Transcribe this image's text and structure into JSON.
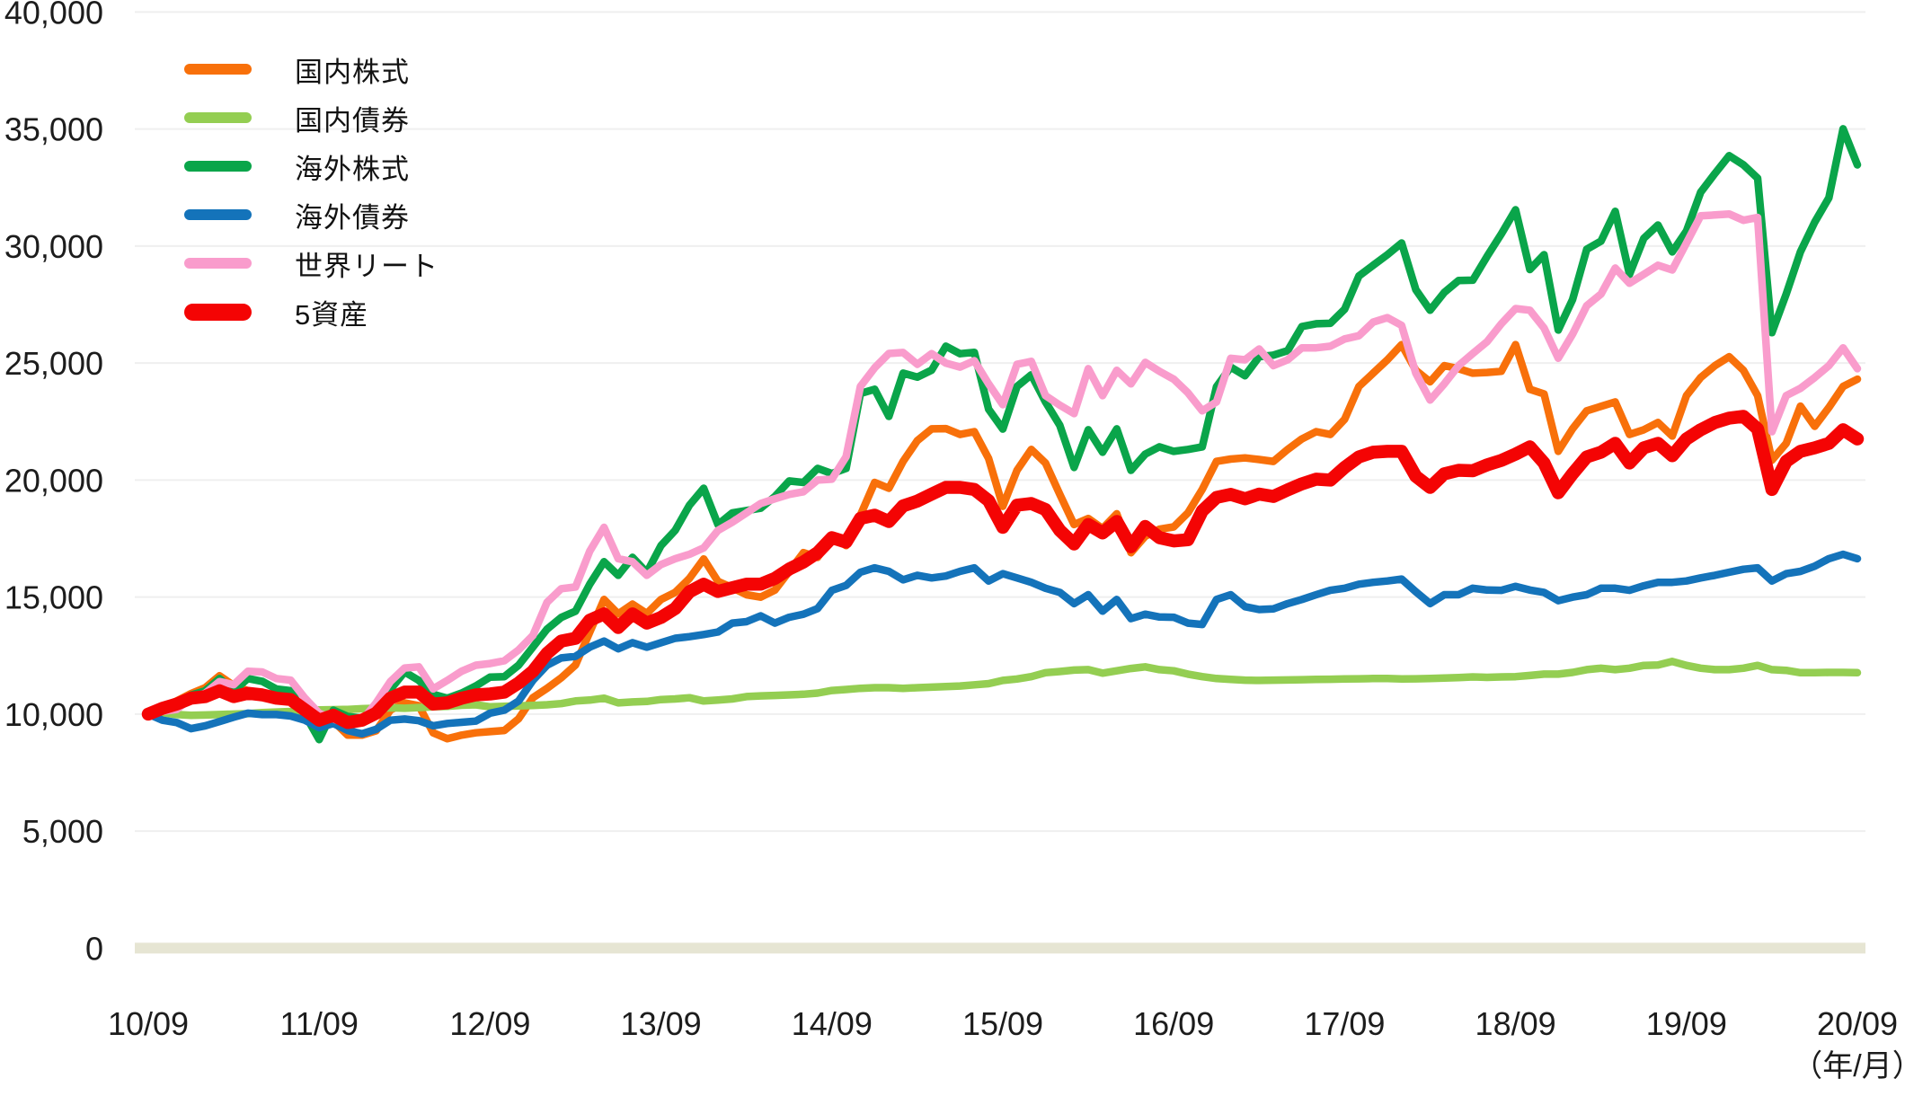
{
  "chart_data": {
    "type": "line",
    "title": "",
    "description": "Growth of 10,000 invested in five asset classes and a 5-asset blend, monthly 2010/09 - 2020/09",
    "x_axis": {
      "unit_label": "（年/月）",
      "tick_labels": [
        "10/09",
        "11/09",
        "12/09",
        "13/09",
        "14/09",
        "15/09",
        "16/09",
        "17/09",
        "18/09",
        "19/09",
        "20/09"
      ],
      "interval": "monthly",
      "months_per_tick": 12,
      "total_points": 121
    },
    "y_axis": {
      "min": 0,
      "max": 40000,
      "tick_step": 5000,
      "tick_values": [
        0,
        5000,
        10000,
        15000,
        20000,
        25000,
        30000,
        35000,
        40000
      ],
      "tick_labels": [
        "0",
        "5,000",
        "10,000",
        "15,000",
        "20,000",
        "25,000",
        "30,000",
        "35,000",
        "40,000"
      ],
      "grid": true,
      "grid_color": "#efefef",
      "zero_line_color": "#e6e5d3"
    },
    "legend": [
      {
        "label": "国内株式",
        "color": "#f8700a"
      },
      {
        "label": "国内債券",
        "color": "#94ce52"
      },
      {
        "label": "海外株式",
        "color": "#0aa54a"
      },
      {
        "label": "海外債券",
        "color": "#1473ba"
      },
      {
        "label": "世界リート",
        "color": "#f99ccc"
      },
      {
        "label": "5資産",
        "color": "#f40404"
      }
    ],
    "series": [
      {
        "name": "国内株式",
        "color": "#f8700a",
        "emphasis": false,
        "values": [
          10000,
          10300,
          10560,
          10880,
          11130,
          11640,
          11220,
          11000,
          10750,
          10860,
          10650,
          9900,
          9600,
          9700,
          9100,
          9100,
          9290,
          10170,
          10480,
          10360,
          9200,
          8950,
          9100,
          9200,
          9250,
          9300,
          9800,
          10700,
          11100,
          11550,
          12100,
          13500,
          14900,
          14280,
          14700,
          14300,
          14900,
          15200,
          15800,
          16630,
          15670,
          15400,
          15100,
          15000,
          15300,
          16100,
          16900,
          16700,
          17590,
          17200,
          18500,
          19900,
          19650,
          20800,
          21690,
          22190,
          22200,
          21950,
          22070,
          20920,
          18880,
          20420,
          21310,
          20730,
          19390,
          18100,
          18360,
          17930,
          18560,
          16900,
          17600,
          17900,
          18000,
          18600,
          19600,
          20800,
          20900,
          20950,
          20880,
          20800,
          21310,
          21760,
          22070,
          21950,
          22600,
          24000,
          24570,
          25140,
          25790,
          24690,
          24200,
          24890,
          24760,
          24570,
          24600,
          24650,
          25790,
          23880,
          23680,
          21230,
          22190,
          22960,
          23150,
          23340,
          21950,
          22150,
          22460,
          21880,
          23610,
          24380,
          24890,
          25270,
          24690,
          23610,
          20850,
          21570,
          23160,
          22300,
          23100,
          24000,
          24310
        ]
      },
      {
        "name": "国内債券",
        "color": "#94ce52",
        "emphasis": false,
        "values": [
          10000,
          10060,
          9980,
          9950,
          9960,
          9980,
          10000,
          10020,
          10060,
          10090,
          10110,
          10160,
          10180,
          10190,
          10200,
          10230,
          10250,
          10270,
          10250,
          10280,
          10310,
          10330,
          10380,
          10400,
          10310,
          10330,
          10350,
          10370,
          10400,
          10450,
          10560,
          10600,
          10680,
          10480,
          10520,
          10540,
          10620,
          10650,
          10700,
          10560,
          10600,
          10650,
          10750,
          10780,
          10800,
          10820,
          10850,
          10900,
          11010,
          11050,
          11100,
          11130,
          11130,
          11100,
          11130,
          11150,
          11180,
          11200,
          11250,
          11300,
          11440,
          11500,
          11600,
          11770,
          11820,
          11880,
          11900,
          11750,
          11850,
          11950,
          12020,
          11900,
          11850,
          11710,
          11600,
          11520,
          11480,
          11450,
          11440,
          11450,
          11460,
          11470,
          11480,
          11490,
          11500,
          11510,
          11520,
          11520,
          11500,
          11510,
          11520,
          11540,
          11560,
          11590,
          11570,
          11590,
          11600,
          11650,
          11710,
          11710,
          11780,
          11900,
          11960,
          11900,
          11960,
          12080,
          12100,
          12250,
          12080,
          11960,
          11900,
          11900,
          11960,
          12080,
          11900,
          11870,
          11770,
          11770,
          11780,
          11780,
          11770
        ]
      },
      {
        "name": "海外株式",
        "color": "#0aa54a",
        "emphasis": false,
        "values": [
          10000,
          10350,
          10430,
          10810,
          11000,
          11520,
          11000,
          11520,
          11400,
          11070,
          11000,
          9980,
          8910,
          10170,
          9900,
          9830,
          10200,
          11050,
          11800,
          11440,
          10850,
          10680,
          10900,
          11200,
          11580,
          11600,
          12090,
          12860,
          13630,
          14130,
          14400,
          15550,
          16510,
          15930,
          16700,
          16050,
          17200,
          17850,
          18930,
          19650,
          18100,
          18600,
          18700,
          18800,
          19300,
          19960,
          19900,
          20500,
          20280,
          20500,
          23700,
          23880,
          22720,
          24570,
          24400,
          24700,
          25720,
          25400,
          25460,
          23030,
          22180,
          24000,
          24500,
          23340,
          22340,
          20540,
          22150,
          21190,
          22190,
          20420,
          21110,
          21420,
          21230,
          21310,
          21420,
          23990,
          24830,
          24460,
          25270,
          25340,
          25530,
          26560,
          26680,
          26700,
          27300,
          28720,
          29180,
          29630,
          30130,
          28140,
          27260,
          28020,
          28530,
          28540,
          29560,
          30520,
          31550,
          29000,
          29630,
          26410,
          27710,
          29860,
          30210,
          31480,
          28790,
          30330,
          30900,
          29750,
          30640,
          32300,
          33100,
          33860,
          33470,
          32900,
          26300,
          27950,
          29750,
          31020,
          32060,
          35010,
          33470
        ]
      },
      {
        "name": "海外債券",
        "color": "#1473ba",
        "emphasis": false,
        "values": [
          10000,
          9740,
          9640,
          9380,
          9500,
          9680,
          9870,
          10040,
          9980,
          9980,
          9920,
          9740,
          9420,
          9600,
          9300,
          9160,
          9350,
          9740,
          9790,
          9720,
          9500,
          9600,
          9650,
          9700,
          10040,
          10170,
          10560,
          11440,
          12090,
          12400,
          12470,
          12860,
          13120,
          12790,
          13050,
          12860,
          13050,
          13240,
          13310,
          13400,
          13510,
          13890,
          13950,
          14200,
          13890,
          14140,
          14270,
          14510,
          15290,
          15500,
          16060,
          16250,
          16100,
          15740,
          15930,
          15820,
          15900,
          16100,
          16250,
          15690,
          16000,
          15820,
          15630,
          15380,
          15200,
          14720,
          15100,
          14400,
          14900,
          14080,
          14270,
          14150,
          14140,
          13890,
          13830,
          14900,
          15100,
          14590,
          14470,
          14500,
          14720,
          14900,
          15100,
          15290,
          15380,
          15550,
          15630,
          15690,
          15770,
          15230,
          14720,
          15100,
          15100,
          15380,
          15300,
          15290,
          15460,
          15300,
          15200,
          14850,
          15000,
          15100,
          15380,
          15380,
          15290,
          15480,
          15630,
          15630,
          15690,
          15820,
          15930,
          16060,
          16190,
          16250,
          15690,
          16000,
          16100,
          16320,
          16640,
          16830,
          16640
        ]
      },
      {
        "name": "世界リート",
        "color": "#f99ccc",
        "emphasis": false,
        "values": [
          10000,
          10120,
          10200,
          10680,
          10890,
          11390,
          11260,
          11830,
          11800,
          11520,
          11450,
          10680,
          10040,
          9790,
          9600,
          9720,
          10480,
          11390,
          11970,
          12020,
          11080,
          11440,
          11830,
          12090,
          12160,
          12280,
          12740,
          13360,
          14780,
          15360,
          15430,
          16960,
          17980,
          16640,
          16510,
          15930,
          16390,
          16640,
          16830,
          17100,
          17850,
          18200,
          18600,
          19000,
          19200,
          19390,
          19500,
          20000,
          20040,
          21000,
          24000,
          24800,
          25410,
          25450,
          24950,
          25400,
          25000,
          24830,
          25100,
          24110,
          23220,
          24950,
          25070,
          23610,
          23200,
          22840,
          24760,
          23610,
          24690,
          24110,
          25030,
          24650,
          24310,
          23730,
          22960,
          23340,
          25200,
          25140,
          25600,
          24890,
          25140,
          25650,
          25650,
          25720,
          26030,
          26170,
          26750,
          26940,
          26610,
          24570,
          23420,
          24110,
          24890,
          25410,
          25910,
          26680,
          27330,
          27260,
          26500,
          25210,
          26230,
          27450,
          27950,
          29060,
          28410,
          28790,
          29180,
          28980,
          30130,
          31290,
          31330,
          31370,
          31100,
          31220,
          22070,
          23610,
          23920,
          24380,
          24890,
          25650,
          24760
        ]
      },
      {
        "name": "5資産",
        "color": "#f40404",
        "emphasis": true,
        "values": [
          10000,
          10250,
          10430,
          10680,
          10750,
          11000,
          10750,
          10890,
          10820,
          10680,
          10620,
          10180,
          9740,
          9950,
          9640,
          9740,
          10040,
          10680,
          10940,
          10940,
          10430,
          10480,
          10680,
          10820,
          10860,
          10940,
          11330,
          11830,
          12600,
          13120,
          13240,
          14010,
          14280,
          13700,
          14280,
          13890,
          14130,
          14510,
          15230,
          15550,
          15240,
          15400,
          15550,
          15550,
          15800,
          16200,
          16500,
          16900,
          17540,
          17350,
          18360,
          18500,
          18230,
          18900,
          19100,
          19400,
          19690,
          19690,
          19600,
          19120,
          17980,
          18930,
          19000,
          18740,
          17850,
          17270,
          18100,
          17740,
          18230,
          17150,
          18020,
          17540,
          17400,
          17450,
          18680,
          19260,
          19390,
          19200,
          19400,
          19300,
          19580,
          19840,
          20040,
          20000,
          20540,
          20990,
          21190,
          21230,
          21230,
          20160,
          19690,
          20270,
          20420,
          20400,
          20650,
          20840,
          21110,
          21420,
          20730,
          19460,
          20270,
          20990,
          21190,
          21570,
          20730,
          21380,
          21570,
          21040,
          21760,
          22150,
          22460,
          22650,
          22720,
          22190,
          19600,
          20800,
          21230,
          21380,
          21570,
          22150,
          21760
        ]
      }
    ]
  }
}
